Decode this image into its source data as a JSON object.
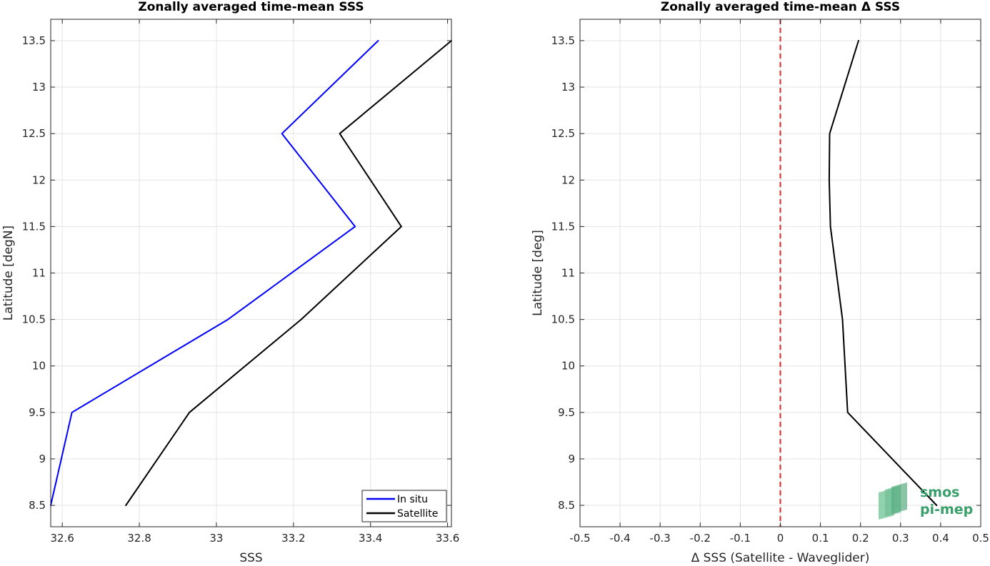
{
  "chart_data": [
    {
      "type": "line",
      "title": "Zonally averaged time-mean SSS",
      "xlabel": "SSS",
      "ylabel": "Latitude [degN]",
      "xlim": [
        32.57,
        33.61
      ],
      "ylim": [
        8.27,
        13.73
      ],
      "grid": true,
      "x_ticks": [
        32.6,
        32.8,
        33,
        33.2,
        33.4,
        33.6
      ],
      "x_tick_labels": [
        "32.6",
        "32.8",
        "33",
        "33.2",
        "33.4",
        "33.6"
      ],
      "y_ticks": [
        8.5,
        9,
        9.5,
        10,
        10.5,
        11,
        11.5,
        12,
        12.5,
        13,
        13.5
      ],
      "y_tick_labels": [
        "8.5",
        "9",
        "9.5",
        "10",
        "10.5",
        "11",
        "11.5",
        "12",
        "12.5",
        "13",
        "13.5"
      ],
      "legend_position": "bottom-right",
      "series": [
        {
          "name": "In situ",
          "color": "#0000ff",
          "x": [
            32.57,
            32.625,
            33.03,
            33.36,
            33.17,
            33.42
          ],
          "y": [
            8.5,
            9.5,
            10.5,
            11.5,
            12.5,
            13.5
          ]
        },
        {
          "name": "Satellite",
          "color": "#000000",
          "x": [
            32.765,
            32.93,
            33.22,
            33.48,
            33.32,
            33.61
          ],
          "y": [
            8.5,
            9.5,
            10.5,
            11.5,
            12.5,
            13.5
          ]
        }
      ]
    },
    {
      "type": "line",
      "title": "Zonally averaged time-mean Δ SSS",
      "xlabel": "Δ SSS (Satellite - Waveglider)",
      "ylabel": "Latitude [deg]",
      "xlim": [
        -0.5,
        0.5
      ],
      "ylim": [
        8.27,
        13.73
      ],
      "grid": true,
      "x_ticks": [
        -0.5,
        -0.4,
        -0.3,
        -0.2,
        -0.1,
        0,
        0.1,
        0.2,
        0.3,
        0.4,
        0.5
      ],
      "x_tick_labels": [
        "-0.5",
        "-0.4",
        "-0.3",
        "-0.2",
        "-0.1",
        "0",
        "0.1",
        "0.2",
        "0.3",
        "0.4",
        "0.5"
      ],
      "y_ticks": [
        8.5,
        9,
        9.5,
        10,
        10.5,
        11,
        11.5,
        12,
        12.5,
        13,
        13.5
      ],
      "y_tick_labels": [
        "8.5",
        "9",
        "9.5",
        "10",
        "10.5",
        "11",
        "11.5",
        "12",
        "12.5",
        "13",
        "13.5"
      ],
      "reference_line": {
        "x": 0,
        "color": "#d62728",
        "style": "dashed"
      },
      "series": [
        {
          "color": "#000000",
          "x": [
            0.39,
            0.168,
            0.155,
            0.125,
            0.122,
            0.123,
            0.195
          ],
          "y": [
            8.5,
            9.5,
            10.5,
            11.5,
            12,
            12.5,
            13.5
          ]
        }
      ]
    }
  ],
  "logo": {
    "line1": "smos",
    "line2": "pi-mep",
    "color": "#3aa06b"
  }
}
